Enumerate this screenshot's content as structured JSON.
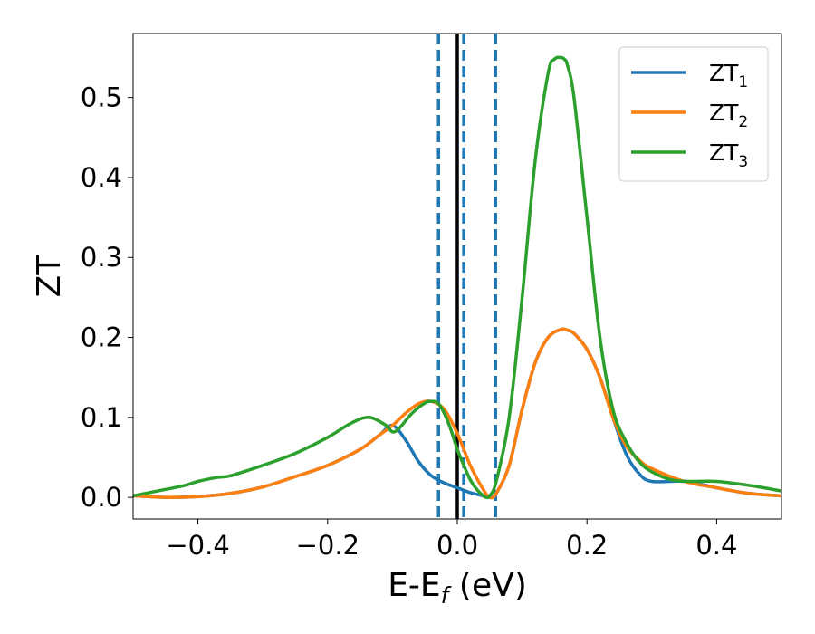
{
  "chart_data": {
    "type": "line",
    "title": "",
    "xlabel": {
      "main": "E-E",
      "sub": "f",
      "tail": " (eV)"
    },
    "ylabel": "ZT",
    "xlim": [
      -0.5,
      0.5
    ],
    "ylim": [
      -0.027,
      0.58
    ],
    "xticks": [
      -0.4,
      -0.2,
      0.0,
      0.2,
      0.4
    ],
    "xtick_labels": [
      "−0.4",
      "−0.2",
      "0.0",
      "0.2",
      "0.4"
    ],
    "yticks": [
      0.0,
      0.1,
      0.2,
      0.3,
      0.4,
      0.5
    ],
    "ytick_labels": [
      "0.0",
      "0.1",
      "0.2",
      "0.3",
      "0.4",
      "0.5"
    ],
    "grid": false,
    "legend_position": "top-right",
    "vlines": [
      {
        "x": -0.029,
        "style": "dashed",
        "color": "#1f77b4"
      },
      {
        "x": 0.0,
        "style": "solid",
        "color": "#000000"
      },
      {
        "x": 0.01,
        "style": "dashed",
        "color": "#1f77b4"
      },
      {
        "x": 0.059,
        "style": "dashed",
        "color": "#1f77b4"
      }
    ],
    "series": [
      {
        "name": "ZT",
        "sub": "1",
        "color": "#1f77b4",
        "x": [
          -0.5,
          -0.45,
          -0.4,
          -0.35,
          -0.3,
          -0.25,
          -0.2,
          -0.15,
          -0.12,
          -0.1,
          -0.08,
          -0.06,
          -0.04,
          -0.02,
          0.0,
          0.02,
          0.04,
          0.05,
          0.06,
          0.08,
          0.1,
          0.12,
          0.14,
          0.16,
          0.17,
          0.18,
          0.2,
          0.22,
          0.24,
          0.26,
          0.28,
          0.3,
          0.35,
          0.4,
          0.45,
          0.5
        ],
        "y": [
          0.002,
          0.0,
          0.001,
          0.005,
          0.013,
          0.026,
          0.04,
          0.06,
          0.078,
          0.09,
          0.072,
          0.045,
          0.027,
          0.018,
          0.012,
          0.006,
          0.002,
          0.0,
          0.005,
          0.04,
          0.11,
          0.168,
          0.2,
          0.21,
          0.209,
          0.205,
          0.185,
          0.15,
          0.1,
          0.055,
          0.03,
          0.02,
          0.02,
          0.012,
          0.005,
          0.002
        ]
      },
      {
        "name": "ZT",
        "sub": "2",
        "color": "#ff7f0e",
        "x": [
          -0.5,
          -0.45,
          -0.4,
          -0.35,
          -0.3,
          -0.25,
          -0.2,
          -0.15,
          -0.12,
          -0.1,
          -0.08,
          -0.06,
          -0.04,
          -0.02,
          0.0,
          0.02,
          0.04,
          0.05,
          0.06,
          0.08,
          0.1,
          0.12,
          0.14,
          0.16,
          0.17,
          0.18,
          0.2,
          0.22,
          0.24,
          0.26,
          0.28,
          0.3,
          0.35,
          0.4,
          0.45,
          0.5
        ],
        "y": [
          0.002,
          0.0,
          0.001,
          0.005,
          0.013,
          0.026,
          0.04,
          0.06,
          0.078,
          0.09,
          0.105,
          0.117,
          0.12,
          0.11,
          0.08,
          0.04,
          0.01,
          0.0,
          0.005,
          0.04,
          0.11,
          0.168,
          0.2,
          0.21,
          0.209,
          0.205,
          0.185,
          0.15,
          0.1,
          0.065,
          0.047,
          0.036,
          0.02,
          0.012,
          0.005,
          0.002
        ]
      },
      {
        "name": "ZT",
        "sub": "3",
        "color": "#2ca02c",
        "x": [
          -0.5,
          -0.45,
          -0.42,
          -0.4,
          -0.37,
          -0.35,
          -0.3,
          -0.25,
          -0.2,
          -0.17,
          -0.15,
          -0.14,
          -0.13,
          -0.11,
          -0.1,
          -0.09,
          -0.07,
          -0.05,
          -0.04,
          -0.03,
          -0.02,
          -0.01,
          0.0,
          0.01,
          0.02,
          0.03,
          0.04,
          0.045,
          0.05,
          0.06,
          0.08,
          0.1,
          0.12,
          0.14,
          0.15,
          0.16,
          0.165,
          0.17,
          0.18,
          0.2,
          0.22,
          0.24,
          0.26,
          0.28,
          0.3,
          0.33,
          0.36,
          0.4,
          0.45,
          0.5
        ],
        "y": [
          0.002,
          0.01,
          0.015,
          0.02,
          0.025,
          0.027,
          0.04,
          0.055,
          0.075,
          0.09,
          0.098,
          0.1,
          0.099,
          0.09,
          0.082,
          0.086,
          0.105,
          0.118,
          0.12,
          0.118,
          0.105,
          0.085,
          0.06,
          0.04,
          0.022,
          0.01,
          0.002,
          0.0,
          0.002,
          0.02,
          0.1,
          0.25,
          0.42,
          0.53,
          0.548,
          0.55,
          0.548,
          0.54,
          0.5,
          0.35,
          0.2,
          0.11,
          0.07,
          0.045,
          0.032,
          0.022,
          0.02,
          0.02,
          0.015,
          0.008
        ]
      }
    ]
  }
}
